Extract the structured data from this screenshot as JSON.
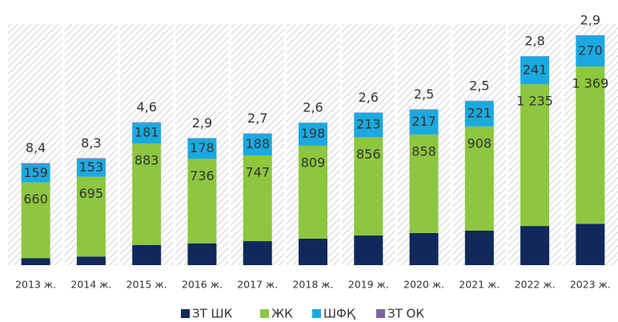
{
  "chart_data": {
    "type": "stacked_bar",
    "categories": [
      "2013 ж.",
      "2014 ж.",
      "2015 ж.",
      "2016 ж.",
      "2017 ж.",
      "2018 ж.",
      "2019 ж.",
      "2020 ж.",
      "2021 ж.",
      "2022 ж.",
      "2023 ж."
    ],
    "series": [
      {
        "name": "ЗТ ШК",
        "color": "#10295a",
        "values": [
          61,
          75,
          176,
          190,
          209,
          231,
          258,
          280,
          300,
          341,
          360
        ]
      },
      {
        "name": "ЖК",
        "color": "#8dc63f",
        "values": [
          660,
          695,
          883,
          736,
          747,
          809,
          856,
          858,
          908,
          1235,
          1369
        ],
        "value_labels": [
          "660",
          "695",
          "883",
          "736",
          "747",
          "809",
          "856",
          "858",
          "908",
          "1 235",
          "1 369"
        ]
      },
      {
        "name": "ШФҚ",
        "color": "#1ba9e1",
        "values": [
          159,
          153,
          181,
          178,
          188,
          198,
          213,
          217,
          221,
          241,
          270
        ]
      },
      {
        "name": "ЗТ ОК",
        "color": "#8064a2",
        "values": [
          8.4,
          8.3,
          4.6,
          2.9,
          2.7,
          2.6,
          2.6,
          2.5,
          2.5,
          2.8,
          2.9
        ],
        "value_labels": [
          "8,4",
          "8,3",
          "4,6",
          "2,9",
          "2,7",
          "2,6",
          "2,6",
          "2,5",
          "2,5",
          "2,8",
          "2,9"
        ]
      }
    ],
    "ylim": [
      0,
      2100
    ],
    "legend": "bottom"
  }
}
